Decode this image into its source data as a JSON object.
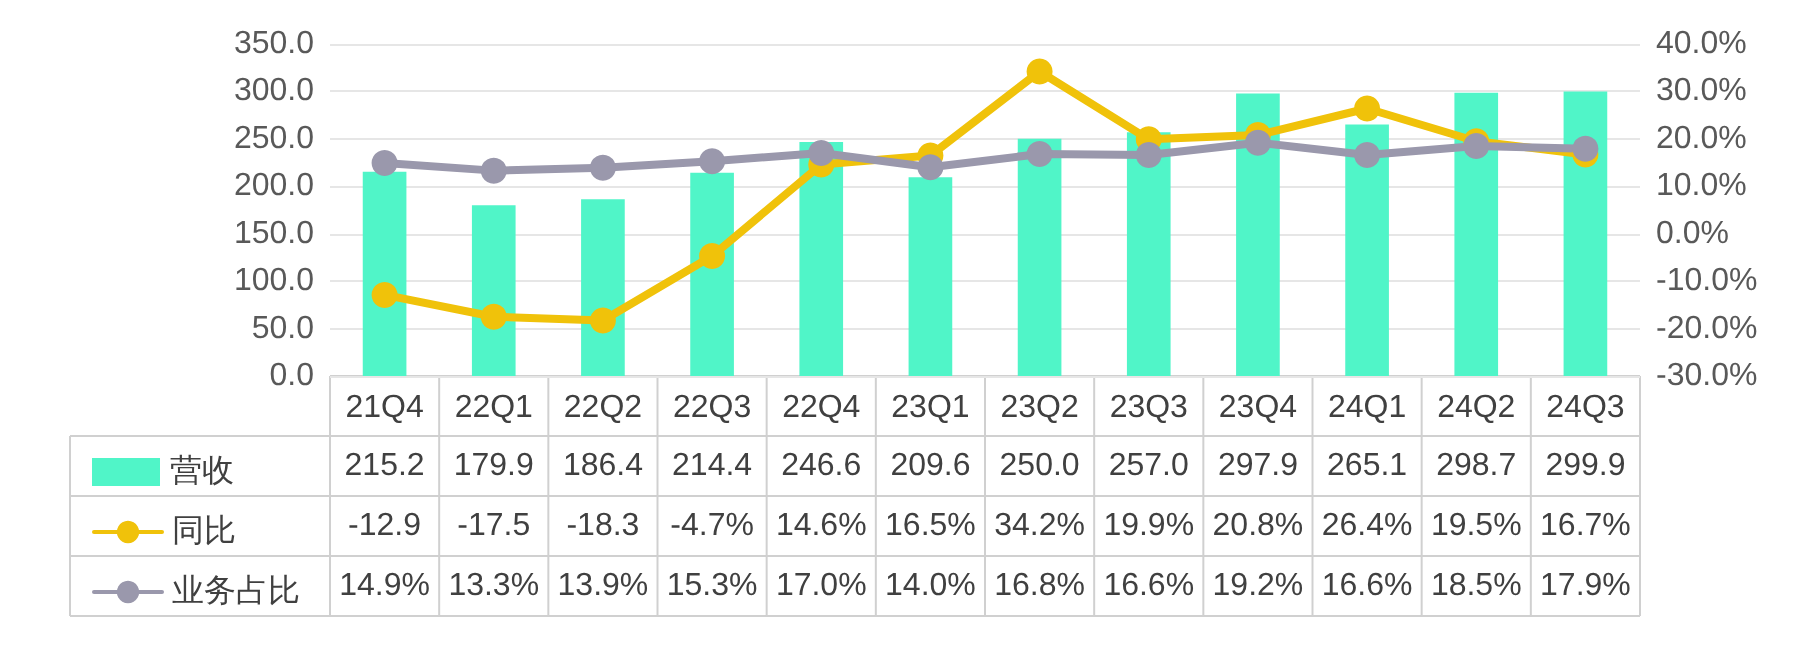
{
  "chart_data": {
    "type": "bar",
    "categories": [
      "21Q4",
      "22Q1",
      "22Q2",
      "22Q3",
      "22Q4",
      "23Q1",
      "23Q2",
      "23Q3",
      "23Q4",
      "24Q1",
      "24Q2",
      "24Q3"
    ],
    "series": [
      {
        "name": "营收",
        "color": "#50f5c8",
        "values": [
          215.2,
          179.9,
          186.4,
          214.4,
          246.6,
          209.6,
          250.0,
          257.0,
          297.9,
          265.1,
          298.7,
          299.9
        ],
        "value_labels": [
          "215.2",
          "179.9",
          "186.4",
          "214.4",
          "246.6",
          "209.6",
          "250.0",
          "257.0",
          "297.9",
          "265.1",
          "298.7",
          "299.9"
        ]
      },
      {
        "name": "同比",
        "type": "line",
        "axis": "y2",
        "color": "#f0c20a",
        "values": [
          -12.9,
          -17.5,
          -18.3,
          -4.7,
          14.6,
          16.5,
          34.2,
          19.9,
          20.8,
          26.4,
          19.5,
          16.7
        ],
        "value_labels": [
          "-12.9",
          "-17.5",
          "-18.3",
          "-4.7%",
          "14.6%",
          "16.5%",
          "34.2%",
          "19.9%",
          "20.8%",
          "26.4%",
          "19.5%",
          "16.7%"
        ]
      },
      {
        "name": "业务占比",
        "type": "line",
        "axis": "y2",
        "color": "#9a98ac",
        "values": [
          14.9,
          13.3,
          13.9,
          15.3,
          17.0,
          14.0,
          16.8,
          16.6,
          19.2,
          16.6,
          18.5,
          17.9
        ],
        "value_labels": [
          "14.9%",
          "13.3%",
          "13.9%",
          "15.3%",
          "17.0%",
          "14.0%",
          "16.8%",
          "16.6%",
          "19.2%",
          "16.6%",
          "18.5%",
          "17.9%"
        ]
      }
    ],
    "ylim": [
      0,
      350
    ],
    "yticks": [
      {
        "value": 0,
        "label": "0.0"
      },
      {
        "value": 50,
        "label": "50.0"
      },
      {
        "value": 100,
        "label": "100.0"
      },
      {
        "value": 150,
        "label": "150.0"
      },
      {
        "value": 200,
        "label": "200.0"
      },
      {
        "value": 250,
        "label": "250.0"
      },
      {
        "value": 300,
        "label": "300.0"
      },
      {
        "value": 350,
        "label": "350.0"
      }
    ],
    "y2lim": [
      -30,
      40
    ],
    "y2ticks": [
      {
        "value": -30,
        "label": "-30.0%"
      },
      {
        "value": -20,
        "label": "-20.0%"
      },
      {
        "value": -10,
        "label": "-10.0%"
      },
      {
        "value": 0,
        "label": "0.0%"
      },
      {
        "value": 10,
        "label": "10.0%"
      },
      {
        "value": 20,
        "label": "20.0%"
      },
      {
        "value": 30,
        "label": "30.0%"
      },
      {
        "value": 40,
        "label": "40.0%"
      }
    ],
    "grid": "y",
    "legend": "bottom",
    "marker": "circle",
    "line_style": "solid"
  }
}
